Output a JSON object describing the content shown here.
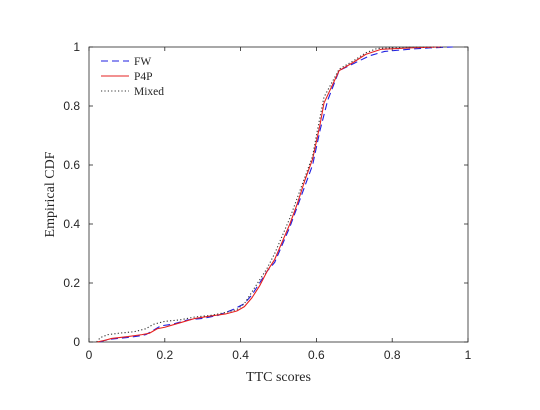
{
  "chart_data": {
    "type": "line",
    "title": "",
    "xlabel": "TTC scores",
    "ylabel": "Empirical CDF",
    "xlim": [
      0,
      1
    ],
    "ylim": [
      0,
      1
    ],
    "xticks": [
      0,
      0.2,
      0.4,
      0.6,
      0.8,
      1
    ],
    "yticks": [
      0,
      0.2,
      0.4,
      0.6,
      0.8,
      1
    ],
    "xtick_labels": [
      "0",
      "0.2",
      "0.4",
      "0.6",
      "0.8",
      "1"
    ],
    "ytick_labels": [
      "0",
      "0.2",
      "0.4",
      "0.6",
      "0.8",
      "1"
    ],
    "grid": false,
    "legend_position": "top-left",
    "series": [
      {
        "name": "FW",
        "color": "#1f1fe0",
        "dash": "dashed",
        "points": [
          [
            0.03,
            0
          ],
          [
            0.04,
            0.005
          ],
          [
            0.06,
            0.01
          ],
          [
            0.1,
            0.015
          ],
          [
            0.13,
            0.02
          ],
          [
            0.15,
            0.025
          ],
          [
            0.17,
            0.04
          ],
          [
            0.19,
            0.055
          ],
          [
            0.22,
            0.06
          ],
          [
            0.26,
            0.075
          ],
          [
            0.3,
            0.08
          ],
          [
            0.34,
            0.09
          ],
          [
            0.38,
            0.11
          ],
          [
            0.41,
            0.13
          ],
          [
            0.43,
            0.16
          ],
          [
            0.45,
            0.2
          ],
          [
            0.47,
            0.24
          ],
          [
            0.49,
            0.27
          ],
          [
            0.51,
            0.33
          ],
          [
            0.53,
            0.39
          ],
          [
            0.55,
            0.46
          ],
          [
            0.57,
            0.53
          ],
          [
            0.59,
            0.6
          ],
          [
            0.61,
            0.72
          ],
          [
            0.63,
            0.82
          ],
          [
            0.66,
            0.92
          ],
          [
            0.7,
            0.945
          ],
          [
            0.74,
            0.97
          ],
          [
            0.78,
            0.985
          ],
          [
            0.85,
            0.993
          ],
          [
            0.9,
            0.997
          ],
          [
            0.96,
            1
          ]
        ]
      },
      {
        "name": "P4P",
        "color": "#e62020",
        "dash": "solid",
        "points": [
          [
            0.02,
            0
          ],
          [
            0.04,
            0.005
          ],
          [
            0.06,
            0.012
          ],
          [
            0.1,
            0.018
          ],
          [
            0.14,
            0.025
          ],
          [
            0.16,
            0.03
          ],
          [
            0.18,
            0.045
          ],
          [
            0.2,
            0.05
          ],
          [
            0.24,
            0.065
          ],
          [
            0.28,
            0.08
          ],
          [
            0.32,
            0.088
          ],
          [
            0.36,
            0.095
          ],
          [
            0.39,
            0.105
          ],
          [
            0.41,
            0.12
          ],
          [
            0.43,
            0.15
          ],
          [
            0.45,
            0.19
          ],
          [
            0.47,
            0.24
          ],
          [
            0.49,
            0.28
          ],
          [
            0.51,
            0.34
          ],
          [
            0.53,
            0.4
          ],
          [
            0.55,
            0.47
          ],
          [
            0.57,
            0.55
          ],
          [
            0.59,
            0.62
          ],
          [
            0.61,
            0.74
          ],
          [
            0.62,
            0.81
          ],
          [
            0.66,
            0.92
          ],
          [
            0.7,
            0.95
          ],
          [
            0.73,
            0.975
          ],
          [
            0.77,
            0.992
          ],
          [
            0.85,
            0.997
          ],
          [
            0.93,
            1
          ]
        ]
      },
      {
        "name": "Mixed",
        "color": "#333333",
        "dash": "dotted",
        "points": [
          [
            0.02,
            0
          ],
          [
            0.03,
            0.015
          ],
          [
            0.05,
            0.025
          ],
          [
            0.08,
            0.03
          ],
          [
            0.12,
            0.035
          ],
          [
            0.15,
            0.045
          ],
          [
            0.17,
            0.06
          ],
          [
            0.2,
            0.07
          ],
          [
            0.24,
            0.075
          ],
          [
            0.28,
            0.085
          ],
          [
            0.32,
            0.09
          ],
          [
            0.36,
            0.1
          ],
          [
            0.39,
            0.11
          ],
          [
            0.41,
            0.13
          ],
          [
            0.43,
            0.17
          ],
          [
            0.45,
            0.21
          ],
          [
            0.47,
            0.25
          ],
          [
            0.49,
            0.3
          ],
          [
            0.51,
            0.36
          ],
          [
            0.53,
            0.42
          ],
          [
            0.55,
            0.49
          ],
          [
            0.57,
            0.56
          ],
          [
            0.59,
            0.63
          ],
          [
            0.6,
            0.7
          ],
          [
            0.62,
            0.83
          ],
          [
            0.66,
            0.925
          ],
          [
            0.7,
            0.955
          ],
          [
            0.73,
            0.98
          ],
          [
            0.76,
            0.995
          ],
          [
            0.85,
            1
          ],
          [
            0.93,
            1
          ]
        ]
      }
    ]
  }
}
